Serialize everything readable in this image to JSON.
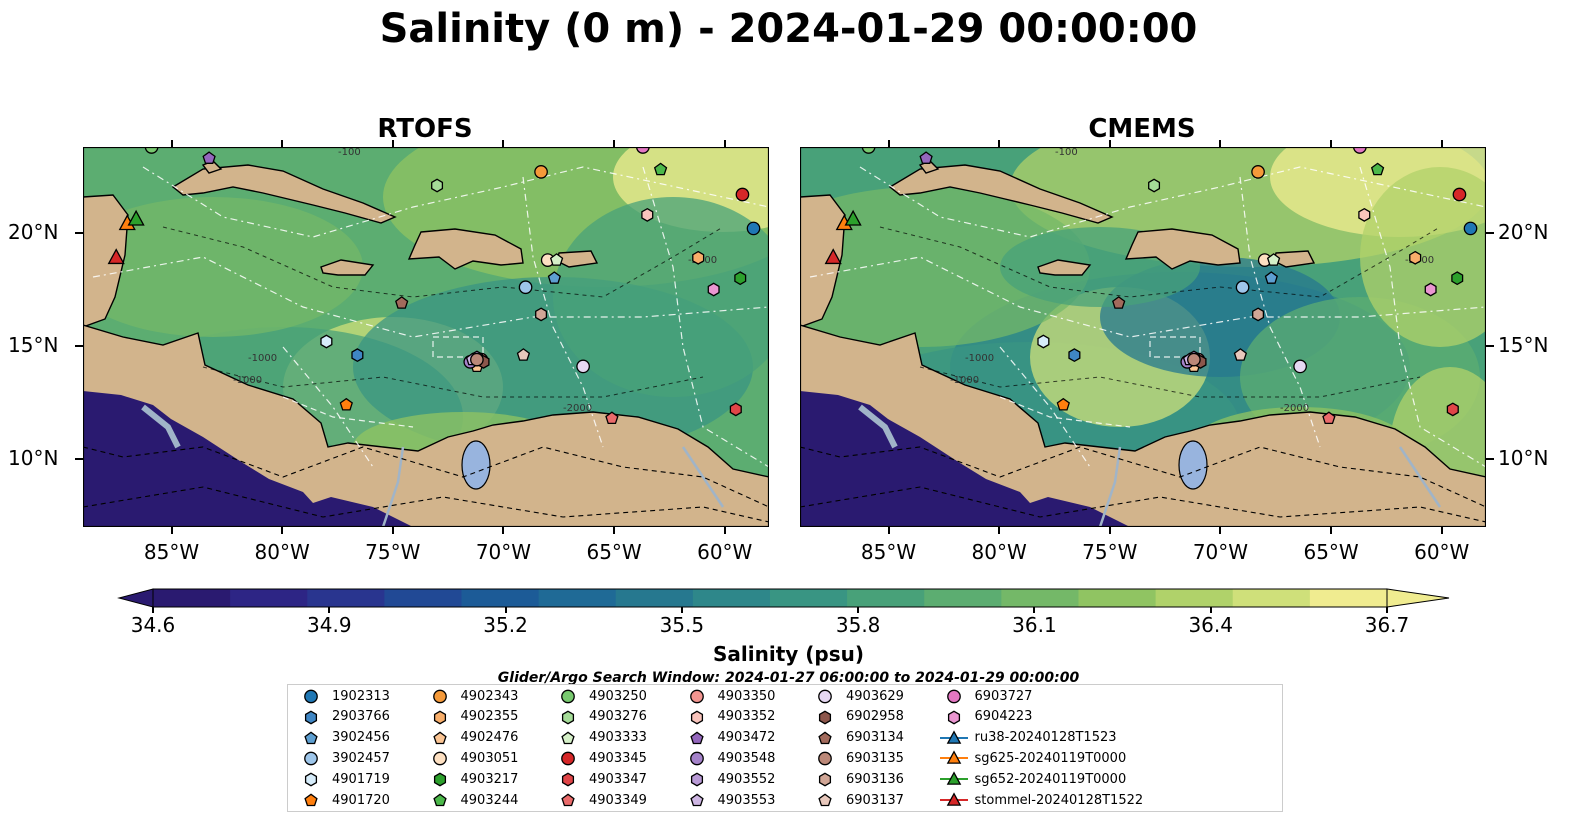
{
  "title": "Salinity (0 m) - 2024-01-29 00:00:00",
  "panels": [
    {
      "title": "RTOFS",
      "variant": "rtofs"
    },
    {
      "title": "CMEMS",
      "variant": "cmems"
    }
  ],
  "axes": {
    "x_ticks": [
      "85°W",
      "80°W",
      "75°W",
      "70°W",
      "65°W",
      "60°W"
    ],
    "x_values": [
      -85,
      -80,
      -75,
      -70,
      -65,
      -60
    ],
    "y_ticks": [
      "20°N",
      "15°N",
      "10°N"
    ],
    "y_values": [
      20,
      15,
      10
    ],
    "lon_range": [
      -89,
      -58
    ],
    "lat_range": [
      7,
      23.8
    ]
  },
  "colorbar": {
    "label": "Salinity (psu)",
    "ticks": [
      "34.6",
      "34.9",
      "35.2",
      "35.5",
      "35.8",
      "36.1",
      "36.4",
      "36.7"
    ],
    "tick_values": [
      34.6,
      34.9,
      35.2,
      35.5,
      35.8,
      36.1,
      36.4,
      36.7
    ],
    "min": 34.6,
    "max": 36.7,
    "extend": "both",
    "colors": [
      "#2a1a70",
      "#2d2585",
      "#29358f",
      "#214995",
      "#1c5b97",
      "#1f6a96",
      "#26788f",
      "#2e878a",
      "#399583",
      "#48a179",
      "#5cad71",
      "#74b868",
      "#90c462",
      "#b0d26a",
      "#cfe07a",
      "#f0ec90"
    ]
  },
  "search_window": "Glider/Argo Search Window: 2024-01-27 06:00:00 to 2024-01-29 00:00:00",
  "colors": {
    "land": "#d2b48c",
    "lake": "#98b4de",
    "river": "#a0b4c8"
  },
  "legend": [
    {
      "label": "1902313",
      "marker": "circle",
      "color": "#1f77b4"
    },
    {
      "label": "2903766",
      "marker": "hexagon",
      "color": "#3f86c4"
    },
    {
      "label": "3902456",
      "marker": "pentagon",
      "color": "#5e9fd1"
    },
    {
      "label": "3902457",
      "marker": "circle",
      "color": "#9ec6ea"
    },
    {
      "label": "4901719",
      "marker": "hexagon",
      "color": "#d6ecfa"
    },
    {
      "label": "4901720",
      "marker": "pentagon",
      "color": "#ff7f0e"
    },
    {
      "label": "4902343",
      "marker": "circle",
      "color": "#f59a3a"
    },
    {
      "label": "4902355",
      "marker": "hexagon",
      "color": "#f8ae6a"
    },
    {
      "label": "4902476",
      "marker": "pentagon",
      "color": "#fbc594"
    },
    {
      "label": "4903051",
      "marker": "circle",
      "color": "#fde0c2"
    },
    {
      "label": "4903217",
      "marker": "hexagon",
      "color": "#2ca02c"
    },
    {
      "label": "4903244",
      "marker": "pentagon",
      "color": "#4cb84a"
    },
    {
      "label": "4903250",
      "marker": "circle",
      "color": "#78c96f"
    },
    {
      "label": "4903276",
      "marker": "hexagon",
      "color": "#a5dc98"
    },
    {
      "label": "4903333",
      "marker": "pentagon",
      "color": "#d5f0c8"
    },
    {
      "label": "4903345",
      "marker": "circle",
      "color": "#d62728"
    },
    {
      "label": "4903347",
      "marker": "hexagon",
      "color": "#e04548"
    },
    {
      "label": "4903349",
      "marker": "pentagon",
      "color": "#ea6b6b"
    },
    {
      "label": "4903350",
      "marker": "circle",
      "color": "#f29590"
    },
    {
      "label": "4903352",
      "marker": "hexagon",
      "color": "#f9c4bc"
    },
    {
      "label": "4903472",
      "marker": "pentagon",
      "color": "#9467bd"
    },
    {
      "label": "4903548",
      "marker": "circle",
      "color": "#a482c9"
    },
    {
      "label": "4903552",
      "marker": "hexagon",
      "color": "#b99ad6"
    },
    {
      "label": "4903553",
      "marker": "pentagon",
      "color": "#ceb6e3"
    },
    {
      "label": "4903629",
      "marker": "circle",
      "color": "#e6d8f2"
    },
    {
      "label": "6902958",
      "marker": "hexagon",
      "color": "#8c564b"
    },
    {
      "label": "6903134",
      "marker": "pentagon",
      "color": "#a26a5c"
    },
    {
      "label": "6903135",
      "marker": "circle",
      "color": "#bb8878"
    },
    {
      "label": "6903136",
      "marker": "hexagon",
      "color": "#d1a696"
    },
    {
      "label": "6903137",
      "marker": "pentagon",
      "color": "#e8c8bc"
    },
    {
      "label": "6903727",
      "marker": "circle",
      "color": "#e377c2"
    },
    {
      "label": "6904223",
      "marker": "hexagon",
      "color": "#ea96d1"
    },
    {
      "label": "ru38-20240128T1523",
      "marker": "triangle",
      "color": "#1f77b4",
      "line": true
    },
    {
      "label": "sg625-20240119T0000",
      "marker": "triangle",
      "color": "#ff7f0e",
      "line": true
    },
    {
      "label": "sg652-20240119T0000",
      "marker": "triangle",
      "color": "#2ca02c",
      "line": true
    },
    {
      "label": "stommel-20240128T1522",
      "marker": "triangle",
      "color": "#d62728",
      "line": true
    }
  ],
  "floats": [
    {
      "label": "1902313",
      "lon": -58.7,
      "lat": 20.2
    },
    {
      "label": "2903766",
      "lon": -76.6,
      "lat": 14.6
    },
    {
      "label": "3902456",
      "lon": -67.7,
      "lat": 18.0
    },
    {
      "label": "3902457",
      "lon": -69.0,
      "lat": 17.6
    },
    {
      "label": "4901719",
      "lon": -78.0,
      "lat": 15.2
    },
    {
      "label": "4901720",
      "lon": -77.1,
      "lat": 12.4
    },
    {
      "label": "4902343",
      "lon": -68.3,
      "lat": 22.7
    },
    {
      "label": "4902355",
      "lon": -61.2,
      "lat": 18.9
    },
    {
      "label": "4902476",
      "lon": -71.2,
      "lat": 14.1
    },
    {
      "label": "4903051",
      "lon": -68.0,
      "lat": 18.8
    },
    {
      "label": "4903217",
      "lon": -59.3,
      "lat": 18.0
    },
    {
      "label": "4903244",
      "lon": -62.9,
      "lat": 22.8
    },
    {
      "label": "4903250",
      "lon": -85.9,
      "lat": 23.8
    },
    {
      "label": "4903276",
      "lon": -73.0,
      "lat": 22.1
    },
    {
      "label": "4903333",
      "lon": -67.6,
      "lat": 18.8
    },
    {
      "label": "4903345",
      "lon": -59.2,
      "lat": 21.7
    },
    {
      "label": "4903347",
      "lon": -59.5,
      "lat": 12.2
    },
    {
      "label": "4903349",
      "lon": -65.1,
      "lat": 11.8
    },
    {
      "label": "4903350",
      "lon": -71.0,
      "lat": 14.4
    },
    {
      "label": "4903352",
      "lon": -63.5,
      "lat": 20.8
    },
    {
      "label": "4903472",
      "lon": -83.3,
      "lat": 23.3
    },
    {
      "label": "4903548",
      "lon": -71.5,
      "lat": 14.3
    },
    {
      "label": "4903552",
      "lon": -71.2,
      "lat": 14.5
    },
    {
      "label": "4903553",
      "lon": -71.4,
      "lat": 14.4
    },
    {
      "label": "4903629",
      "lon": -66.4,
      "lat": 14.1
    },
    {
      "label": "6902958",
      "lon": -70.9,
      "lat": 14.3
    },
    {
      "label": "6903134",
      "lon": -74.6,
      "lat": 16.9
    },
    {
      "label": "6903135",
      "lon": -71.2,
      "lat": 14.4
    },
    {
      "label": "6903136",
      "lon": -68.3,
      "lat": 16.4
    },
    {
      "label": "6903137",
      "lon": -69.1,
      "lat": 14.6
    },
    {
      "label": "6903727",
      "lon": -63.7,
      "lat": 23.8
    },
    {
      "label": "6904223",
      "lon": -60.5,
      "lat": 17.5
    }
  ],
  "gliders": [
    {
      "label": "sg625-20240119T0000",
      "lon": -87.0,
      "lat": 20.4
    },
    {
      "label": "sg652-20240119T0000",
      "lon": -86.6,
      "lat": 20.6
    },
    {
      "label": "stommel-20240128T1522",
      "lon": -87.5,
      "lat": 18.9
    }
  ],
  "contour_labels": [
    "-100",
    "-1000",
    "-2000"
  ]
}
